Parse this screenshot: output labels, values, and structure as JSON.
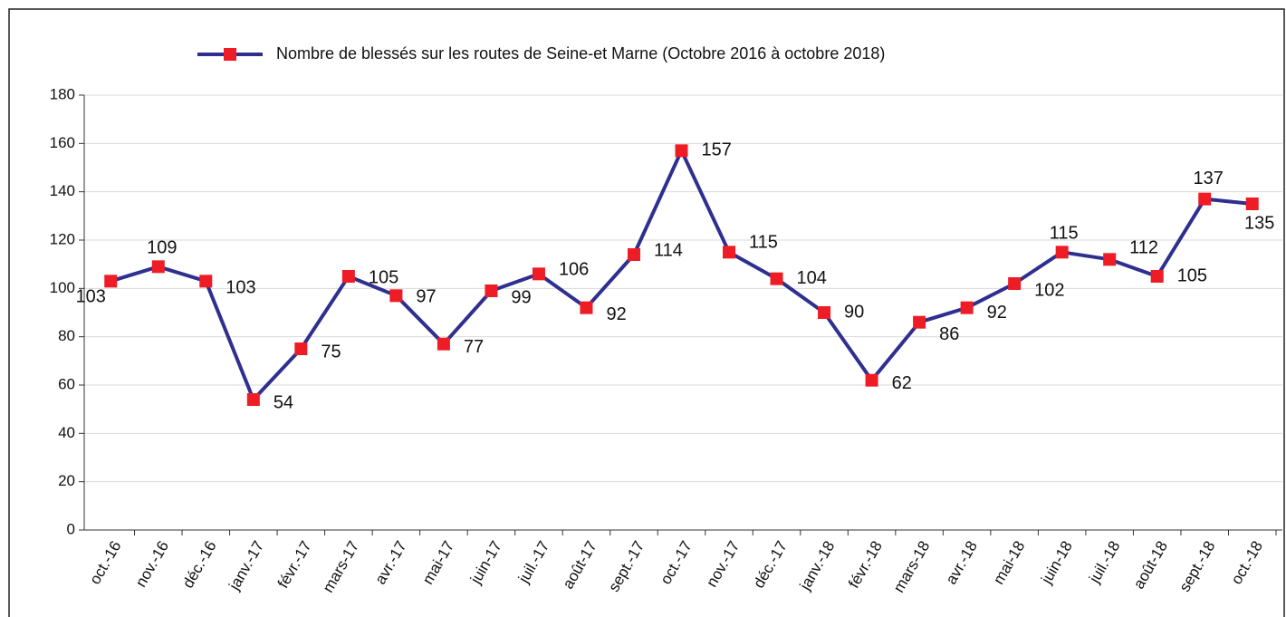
{
  "chart_data": {
    "type": "line",
    "categories": [
      "oct.-16",
      "nov.-16",
      "déc.-16",
      "janv.-17",
      "févr.-17",
      "mars-17",
      "avr.-17",
      "mai-17",
      "juin-17",
      "juil.-17",
      "août-17",
      "sept.-17",
      "oct.-17",
      "nov.-17",
      "déc.-17",
      "janv.-18",
      "févr.-18",
      "mars-18",
      "avr.-18",
      "mai-18",
      "juin-18",
      "juil.-18",
      "août-18",
      "sept.-18",
      "oct.-18"
    ],
    "series": [
      {
        "name": "Nombre de blessés sur les routes  de Seine-et Marne  (Octobre 2016 à octobre 2018)",
        "color": "#2e2f8f",
        "marker_color": "#ee1c25",
        "values": [
          103,
          109,
          103,
          54,
          75,
          105,
          97,
          77,
          99,
          106,
          92,
          114,
          157,
          115,
          104,
          90,
          62,
          86,
          92,
          102,
          115,
          112,
          105,
          137,
          135
        ]
      }
    ],
    "ylim": [
      0,
      180
    ],
    "yticks": [
      0,
      20,
      40,
      60,
      80,
      100,
      120,
      140,
      160,
      180
    ],
    "grid": true,
    "legend": "top"
  }
}
